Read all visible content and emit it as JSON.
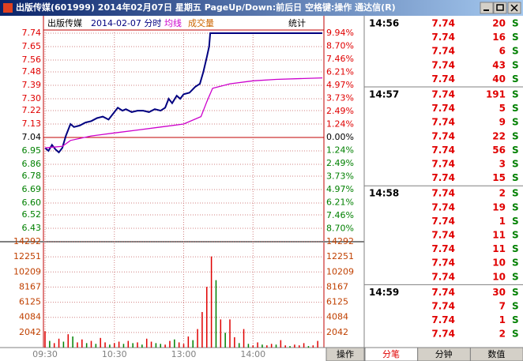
{
  "window": {
    "title": "出版传媒(601999) 2014年02月07日 星期五 PageUp/Down:前后日 空格键:操作 通达信(R)"
  },
  "chart_data": {
    "type": "line",
    "subtitle": "2014-02-07 分时",
    "stat_label": "统计",
    "xlim": [
      0,
      240
    ],
    "xticks": [
      {
        "value": 0,
        "label": "09:30"
      },
      {
        "value": 60,
        "label": "10:30"
      },
      {
        "value": 120,
        "label": "13:00"
      },
      {
        "value": 180,
        "label": "14:00"
      }
    ],
    "ylim": [
      6.34,
      7.74
    ],
    "yticks": [
      7.74,
      7.65,
      7.56,
      7.48,
      7.39,
      {
        "value": 7.3,
        "label": "7.30"
      },
      7.22,
      7.13,
      7.04,
      6.95,
      6.86,
      6.78,
      6.69,
      {
        "value": 6.6,
        "label": "6.60"
      },
      6.52,
      6.43
    ],
    "y2lim": [
      -9.94,
      9.94
    ],
    "y2ticks": [
      {
        "value": 9.94,
        "label": "9.94%"
      },
      {
        "value": 8.7,
        "label": "8.70%"
      },
      {
        "value": 7.46,
        "label": "7.46%"
      },
      {
        "value": 6.21,
        "label": "6.21%"
      },
      {
        "value": 4.97,
        "label": "4.97%"
      },
      {
        "value": 3.73,
        "label": "3.73%"
      },
      {
        "value": 2.49,
        "label": "2.49%"
      },
      {
        "value": 1.24,
        "label": "1.24%"
      },
      {
        "value": 0,
        "label": "0.00%"
      },
      {
        "value": -1.24,
        "label": "1.24%"
      },
      {
        "value": -2.49,
        "label": "2.49%"
      },
      {
        "value": -3.73,
        "label": "3.73%"
      },
      {
        "value": -4.97,
        "label": "4.97%"
      },
      {
        "value": -6.21,
        "label": "6.21%"
      },
      {
        "value": -7.46,
        "label": "7.46%"
      },
      {
        "value": -8.7,
        "label": "8.70%"
      }
    ],
    "series": [
      {
        "name": "出版传媒",
        "color": "#000080",
        "x": [
          0,
          3,
          6,
          9,
          12,
          15,
          18,
          22,
          25,
          30,
          35,
          40,
          45,
          50,
          55,
          60,
          63,
          67,
          70,
          75,
          80,
          85,
          90,
          95,
          100,
          104,
          107,
          110,
          114,
          117,
          120,
          125,
          130,
          134,
          137,
          140,
          142,
          143,
          240
        ],
        "values": [
          6.97,
          6.95,
          6.99,
          6.96,
          6.94,
          6.97,
          7.05,
          7.13,
          7.11,
          7.12,
          7.14,
          7.15,
          7.17,
          7.18,
          7.16,
          7.21,
          7.24,
          7.22,
          7.23,
          7.21,
          7.22,
          7.22,
          7.21,
          7.23,
          7.22,
          7.24,
          7.3,
          7.27,
          7.32,
          7.3,
          7.33,
          7.34,
          7.38,
          7.4,
          7.48,
          7.58,
          7.65,
          7.74,
          7.74
        ]
      },
      {
        "name": "均线",
        "color": "#cc00cc",
        "x": [
          0,
          15,
          22,
          40,
          60,
          80,
          100,
          120,
          135,
          140,
          145,
          160,
          180,
          200,
          240
        ],
        "values": [
          6.97,
          6.98,
          7.02,
          7.05,
          7.07,
          7.09,
          7.11,
          7.13,
          7.18,
          7.28,
          7.37,
          7.4,
          7.42,
          7.43,
          7.44
        ]
      }
    ],
    "volume": {
      "type": "bar",
      "name": "成交量",
      "color": "#cc6600",
      "ylim": [
        0,
        14292
      ],
      "yticks": [
        14292,
        12251,
        10209,
        8167,
        6125,
        4084,
        2042
      ],
      "x": [
        0,
        4,
        8,
        12,
        16,
        20,
        24,
        28,
        32,
        36,
        40,
        44,
        48,
        52,
        56,
        60,
        64,
        68,
        72,
        76,
        80,
        84,
        88,
        92,
        96,
        100,
        104,
        108,
        112,
        116,
        120,
        124,
        128,
        132,
        136,
        140,
        144,
        148,
        152,
        156,
        160,
        164,
        168,
        172,
        176,
        180,
        184,
        188,
        192,
        196,
        200,
        204,
        208,
        212,
        216,
        220,
        224,
        228,
        232,
        236
      ],
      "values": [
        2200,
        900,
        600,
        1200,
        800,
        1800,
        1500,
        700,
        1100,
        600,
        900,
        500,
        1300,
        700,
        400,
        600,
        800,
        500,
        900,
        600,
        700,
        400,
        1200,
        800,
        600,
        500,
        400,
        900,
        1100,
        700,
        500,
        1500,
        1000,
        2500,
        4800,
        8200,
        12300,
        9100,
        3800,
        2000,
        3800,
        1400,
        600,
        2500,
        500,
        300,
        700,
        400,
        300,
        500,
        400,
        1000,
        300,
        200,
        400,
        300,
        600,
        200,
        300,
        900
      ],
      "colors": [
        "#e00000",
        "#008000",
        "#e00000",
        "#e00000",
        "#008000",
        "#e00000",
        "#008000",
        "#e00000",
        "#e00000",
        "#008000",
        "#e00000",
        "#008000",
        "#e00000",
        "#e00000",
        "#008000",
        "#e00000",
        "#e00000",
        "#008000",
        "#e00000",
        "#008000",
        "#e00000",
        "#008000",
        "#e00000",
        "#e00000",
        "#008000",
        "#008000",
        "#e00000",
        "#e00000",
        "#008000",
        "#e00000",
        "#e00000",
        "#e00000",
        "#008000",
        "#e00000",
        "#e00000",
        "#e00000",
        "#e00000",
        "#008000",
        "#e00000",
        "#008000",
        "#e00000",
        "#e00000",
        "#008000",
        "#e00000",
        "#008000",
        "#e00000",
        "#e00000",
        "#008000",
        "#e00000",
        "#e00000",
        "#008000",
        "#e00000",
        "#e00000",
        "#008000",
        "#e00000",
        "#e00000",
        "#e00000",
        "#008000",
        "#e00000",
        "#e00000"
      ]
    }
  },
  "tabs": {
    "left": "操作",
    "right": [
      "分笔",
      "分钟",
      "数值"
    ]
  },
  "ticks": [
    {
      "time": "14:56",
      "rows": [
        [
          "7.74",
          20,
          "S"
        ],
        [
          "7.74",
          16,
          "S"
        ],
        [
          "7.74",
          6,
          "S"
        ],
        [
          "7.74",
          43,
          "S"
        ],
        [
          "7.74",
          40,
          "S"
        ]
      ]
    },
    {
      "time": "14:57",
      "rows": [
        [
          "7.74",
          191,
          "S"
        ],
        [
          "7.74",
          5,
          "S"
        ],
        [
          "7.74",
          9,
          "S"
        ],
        [
          "7.74",
          22,
          "S"
        ],
        [
          "7.74",
          56,
          "S"
        ],
        [
          "7.74",
          3,
          "S"
        ],
        [
          "7.74",
          15,
          "S"
        ]
      ]
    },
    {
      "time": "14:58",
      "rows": [
        [
          "7.74",
          2,
          "S"
        ],
        [
          "7.74",
          19,
          "S"
        ],
        [
          "7.74",
          1,
          "S"
        ],
        [
          "7.74",
          11,
          "S"
        ],
        [
          "7.74",
          11,
          "S"
        ],
        [
          "7.74",
          10,
          "S"
        ],
        [
          "7.74",
          10,
          "S"
        ]
      ]
    },
    {
      "time": "14:59",
      "rows": [
        [
          "7.74",
          30,
          "S"
        ],
        [
          "7.74",
          7,
          "S"
        ],
        [
          "7.74",
          1,
          "S"
        ],
        [
          "7.74",
          2,
          "S"
        ]
      ]
    }
  ]
}
